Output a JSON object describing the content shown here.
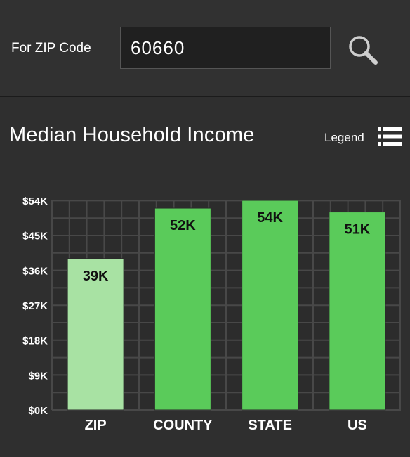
{
  "search": {
    "label": "For ZIP Code",
    "value": "60660"
  },
  "header": {
    "title": "Median Household Income",
    "legend_label": "Legend"
  },
  "colors": {
    "zip_bar": "#a8e2a3",
    "other_bar": "#5acb5a",
    "grid": "#484848"
  },
  "chart_data": {
    "type": "bar",
    "title": "Median Household Income",
    "categories": [
      "ZIP",
      "COUNTY",
      "STATE",
      "US"
    ],
    "values": [
      39,
      52,
      54,
      51
    ],
    "value_labels": [
      "39K",
      "52K",
      "54K",
      "51K"
    ],
    "unit": "K",
    "y_ticks": [
      "$0K",
      "$9K",
      "$18K",
      "$27K",
      "$36K",
      "$45K",
      "$54K"
    ],
    "ylim": [
      0,
      54
    ],
    "grid": true,
    "xlabel": "",
    "ylabel": ""
  }
}
